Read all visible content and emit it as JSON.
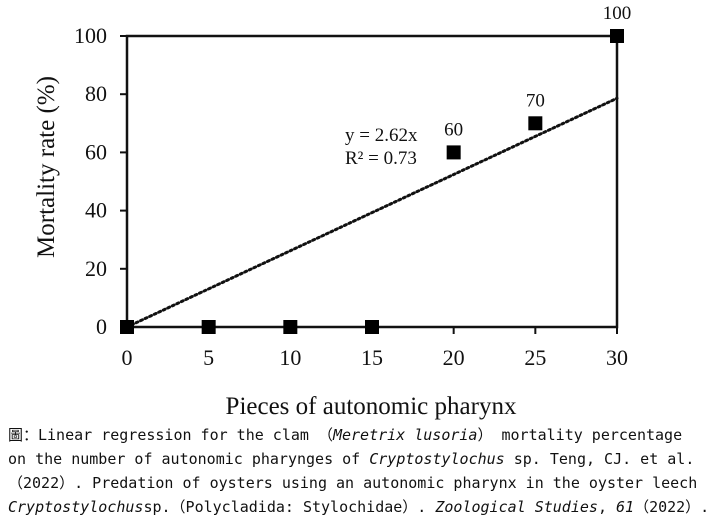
{
  "chart_data": {
    "type": "scatter",
    "x": [
      0,
      5,
      10,
      15,
      20,
      25,
      30
    ],
    "y": [
      0,
      0,
      0,
      0,
      60,
      70,
      100
    ],
    "point_labels": [
      "",
      "",
      "",
      "",
      "60",
      "70",
      "100"
    ],
    "xlabel": "Pieces of autonomic pharynx",
    "ylabel": "Mortality rate (%)",
    "xlim": [
      0,
      30
    ],
    "ylim": [
      0,
      100
    ],
    "xticks": [
      "0",
      "5",
      "10",
      "15",
      "20",
      "25",
      "30"
    ],
    "yticks": [
      "0",
      "20",
      "40",
      "60",
      "80",
      "100"
    ],
    "grid": false,
    "trendline": {
      "slope": 2.62,
      "intercept": 0,
      "style": "dotted",
      "equation": "y = 2.62x",
      "r_squared": "R² = 0.73"
    }
  },
  "caption": {
    "prefix": "圖：Linear regression for the clam （",
    "species1": "Meretrix lusoria",
    "part2": "） mortality percentage",
    "line2a": "on the number of autonomic pharynges of ",
    "genus1": "Cryptostylochus",
    "line2b": " sp. Teng, CJ. et al.",
    "line3": "（2022）. Predation of oysters using an autonomic pharynx in the oyster leech",
    "genus2": "Cryptostylochus",
    "line4a": "sp.（Polycladida: Stylochidae）. ",
    "journal": "Zoological Studies",
    "line4b": ", ",
    "volume": "61",
    "line4c": "（2022）."
  }
}
